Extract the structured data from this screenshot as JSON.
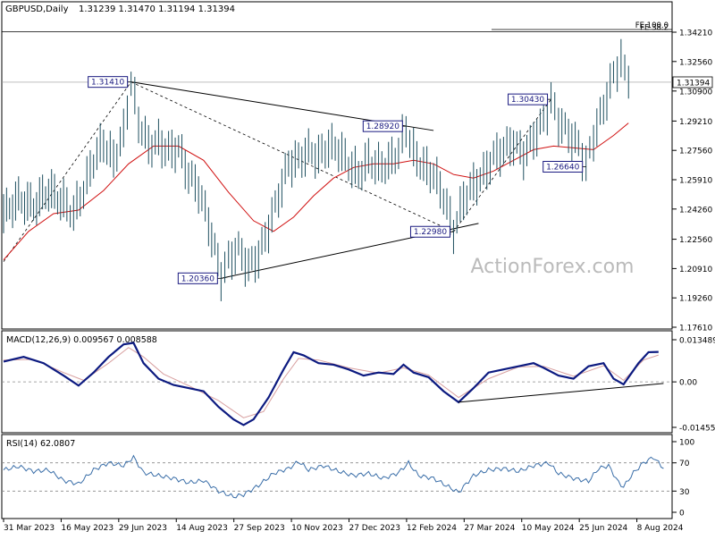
{
  "header": {
    "symbol": "GBPUSD,Daily",
    "ohlc": "1.31239 1.31470 1.31194 1.31394"
  },
  "watermark": "ActionForex.com",
  "colors": {
    "price_line": "#1e4f5f",
    "ma": "#d01010",
    "macd": "#0c1a80",
    "signal": "#d8a0a0",
    "rsi": "#3a6ea8",
    "label_border": "#1a1a80",
    "label_text": "#1a1a80",
    "trendline": "#000000"
  },
  "chart_data": [
    {
      "type": "line",
      "panel": "price",
      "y_ticks": [
        "1.34210",
        "1.32560",
        "1.30900",
        "1.29210",
        "1.27560",
        "1.25910",
        "1.24260",
        "1.22560",
        "1.20910",
        "1.19260",
        "1.17610"
      ],
      "ylim": [
        1.1761,
        1.3511
      ],
      "current_price": "1.31394",
      "fe_lines": [
        {
          "label": "FE 100.0",
          "value": 1.3436
        },
        {
          "label": "FE 38.2",
          "value": 1.3423
        }
      ],
      "x_tick_labels": [
        "31 Mar 2023",
        "16 May 2023",
        "29 Jun 2023",
        "14 Aug 2023",
        "27 Sep 2023",
        "10 Nov 2023",
        "27 Dec 2023",
        "12 Feb 2024",
        "27 Mar 2024",
        "10 May 2024",
        "25 Jun 2024",
        "8 Aug 2024"
      ],
      "annotations": [
        {
          "label": "1.31410",
          "value": 1.3141,
          "x_index": 25.5
        },
        {
          "label": "1.28920",
          "value": 1.2892,
          "x_index": 80.5
        },
        {
          "label": "1.30430",
          "value": 1.3043,
          "x_index": 109.5
        },
        {
          "label": "1.26640",
          "value": 1.2664,
          "x_index": 116.5
        },
        {
          "label": "1.22980",
          "value": 1.2298,
          "x_index": 90.0
        },
        {
          "label": "1.20360",
          "value": 1.2036,
          "x_index": 43.5
        }
      ],
      "price_series": [
        {
          "x": 0,
          "y": 1.24
        },
        {
          "x": 3,
          "y": 1.248
        },
        {
          "x": 6,
          "y": 1.244
        },
        {
          "x": 9,
          "y": 1.253
        },
        {
          "x": 12,
          "y": 1.246
        },
        {
          "x": 14,
          "y": 1.24
        },
        {
          "x": 16,
          "y": 1.253
        },
        {
          "x": 18,
          "y": 1.27
        },
        {
          "x": 20,
          "y": 1.28
        },
        {
          "x": 22,
          "y": 1.27
        },
        {
          "x": 24,
          "y": 1.285
        },
        {
          "x": 25.5,
          "y": 1.314
        },
        {
          "x": 27,
          "y": 1.292
        },
        {
          "x": 29,
          "y": 1.278
        },
        {
          "x": 31,
          "y": 1.28
        },
        {
          "x": 33,
          "y": 1.275
        },
        {
          "x": 35,
          "y": 1.277
        },
        {
          "x": 37,
          "y": 1.262
        },
        {
          "x": 39,
          "y": 1.254
        },
        {
          "x": 41,
          "y": 1.235
        },
        {
          "x": 43.5,
          "y": 1.205
        },
        {
          "x": 45,
          "y": 1.214
        },
        {
          "x": 47,
          "y": 1.22
        },
        {
          "x": 49,
          "y": 1.21
        },
        {
          "x": 51,
          "y": 1.216
        },
        {
          "x": 53,
          "y": 1.232
        },
        {
          "x": 55,
          "y": 1.25
        },
        {
          "x": 57,
          "y": 1.268
        },
        {
          "x": 59,
          "y": 1.27
        },
        {
          "x": 61,
          "y": 1.275
        },
        {
          "x": 63,
          "y": 1.272
        },
        {
          "x": 65,
          "y": 1.278
        },
        {
          "x": 67,
          "y": 1.276
        },
        {
          "x": 69,
          "y": 1.268
        },
        {
          "x": 71,
          "y": 1.262
        },
        {
          "x": 73,
          "y": 1.27
        },
        {
          "x": 75,
          "y": 1.266
        },
        {
          "x": 77,
          "y": 1.268
        },
        {
          "x": 79,
          "y": 1.275
        },
        {
          "x": 80.5,
          "y": 1.288
        },
        {
          "x": 82,
          "y": 1.274
        },
        {
          "x": 84,
          "y": 1.266
        },
        {
          "x": 86,
          "y": 1.262
        },
        {
          "x": 88,
          "y": 1.25
        },
        {
          "x": 90,
          "y": 1.23
        },
        {
          "x": 92,
          "y": 1.248
        },
        {
          "x": 94,
          "y": 1.256
        },
        {
          "x": 96,
          "y": 1.262
        },
        {
          "x": 98,
          "y": 1.272
        },
        {
          "x": 100,
          "y": 1.276
        },
        {
          "x": 102,
          "y": 1.28
        },
        {
          "x": 104,
          "y": 1.273
        },
        {
          "x": 106,
          "y": 1.282
        },
        {
          "x": 108,
          "y": 1.293
        },
        {
          "x": 109.5,
          "y": 1.304
        },
        {
          "x": 111,
          "y": 1.292
        },
        {
          "x": 113,
          "y": 1.285
        },
        {
          "x": 115,
          "y": 1.278
        },
        {
          "x": 116.5,
          "y": 1.267
        },
        {
          "x": 118,
          "y": 1.283
        },
        {
          "x": 120,
          "y": 1.3
        },
        {
          "x": 122,
          "y": 1.318
        },
        {
          "x": 123.5,
          "y": 1.326
        },
        {
          "x": 125,
          "y": 1.314
        }
      ],
      "ma_series": [
        {
          "x": 0,
          "y": 1.214
        },
        {
          "x": 5,
          "y": 1.23
        },
        {
          "x": 10,
          "y": 1.24
        },
        {
          "x": 15,
          "y": 1.242
        },
        {
          "x": 20,
          "y": 1.253
        },
        {
          "x": 25,
          "y": 1.268
        },
        {
          "x": 30,
          "y": 1.278
        },
        {
          "x": 35,
          "y": 1.278
        },
        {
          "x": 40,
          "y": 1.27
        },
        {
          "x": 45,
          "y": 1.252
        },
        {
          "x": 50,
          "y": 1.236
        },
        {
          "x": 54,
          "y": 1.23
        },
        {
          "x": 58,
          "y": 1.238
        },
        {
          "x": 62,
          "y": 1.25
        },
        {
          "x": 66,
          "y": 1.26
        },
        {
          "x": 70,
          "y": 1.266
        },
        {
          "x": 74,
          "y": 1.268
        },
        {
          "x": 78,
          "y": 1.268
        },
        {
          "x": 82,
          "y": 1.27
        },
        {
          "x": 86,
          "y": 1.268
        },
        {
          "x": 90,
          "y": 1.262
        },
        {
          "x": 94,
          "y": 1.26
        },
        {
          "x": 98,
          "y": 1.264
        },
        {
          "x": 102,
          "y": 1.27
        },
        {
          "x": 106,
          "y": 1.276
        },
        {
          "x": 110,
          "y": 1.278
        },
        {
          "x": 114,
          "y": 1.277
        },
        {
          "x": 118,
          "y": 1.276
        },
        {
          "x": 122,
          "y": 1.284
        },
        {
          "x": 125,
          "y": 1.291
        }
      ],
      "trendlines": [
        {
          "style": "solid",
          "from": {
            "x": 25.5,
            "y": 1.3141
          },
          "to": {
            "x": 86,
            "y": 1.2868
          }
        },
        {
          "style": "solid",
          "from": {
            "x": 43.5,
            "y": 1.2036
          },
          "to": {
            "x": 95,
            "y": 1.2345
          }
        },
        {
          "style": "dashed",
          "from": {
            "x": 0,
            "y": 1.213
          },
          "to": {
            "x": 25.5,
            "y": 1.3141
          }
        },
        {
          "style": "dashed",
          "from": {
            "x": 25.5,
            "y": 1.3141
          },
          "to": {
            "x": 90,
            "y": 1.2298
          }
        },
        {
          "style": "dashed",
          "from": {
            "x": 90,
            "y": 1.2298
          },
          "to": {
            "x": 109.5,
            "y": 1.3043
          }
        }
      ]
    },
    {
      "type": "line",
      "panel": "macd",
      "title": "MACD(12,26,9) 0.009567 0.008588",
      "y_ticks": [
        "0.013489",
        "0.00",
        "-0.014554"
      ],
      "ylim": [
        -0.0155,
        0.016
      ],
      "zero_label": "0.00",
      "macd_series": [
        {
          "x": 0,
          "y": 0.0065
        },
        {
          "x": 4,
          "y": 0.008
        },
        {
          "x": 8,
          "y": 0.006
        },
        {
          "x": 12,
          "y": 0.002
        },
        {
          "x": 15,
          "y": -0.0012
        },
        {
          "x": 18,
          "y": 0.003
        },
        {
          "x": 21,
          "y": 0.008
        },
        {
          "x": 24,
          "y": 0.012
        },
        {
          "x": 26,
          "y": 0.0125
        },
        {
          "x": 28,
          "y": 0.006
        },
        {
          "x": 31,
          "y": 0.001
        },
        {
          "x": 34,
          "y": -0.001
        },
        {
          "x": 37,
          "y": -0.002
        },
        {
          "x": 40,
          "y": -0.003
        },
        {
          "x": 43,
          "y": -0.008
        },
        {
          "x": 46,
          "y": -0.012
        },
        {
          "x": 48,
          "y": -0.0138
        },
        {
          "x": 50,
          "y": -0.012
        },
        {
          "x": 53,
          "y": -0.005
        },
        {
          "x": 56,
          "y": 0.004
        },
        {
          "x": 58,
          "y": 0.0095
        },
        {
          "x": 60,
          "y": 0.0085
        },
        {
          "x": 63,
          "y": 0.006
        },
        {
          "x": 66,
          "y": 0.0055
        },
        {
          "x": 69,
          "y": 0.004
        },
        {
          "x": 72,
          "y": 0.002
        },
        {
          "x": 75,
          "y": 0.003
        },
        {
          "x": 78,
          "y": 0.0025
        },
        {
          "x": 80,
          "y": 0.0055
        },
        {
          "x": 82,
          "y": 0.003
        },
        {
          "x": 85,
          "y": 0.0015
        },
        {
          "x": 88,
          "y": -0.003
        },
        {
          "x": 91,
          "y": -0.0065
        },
        {
          "x": 94,
          "y": -0.002
        },
        {
          "x": 97,
          "y": 0.003
        },
        {
          "x": 100,
          "y": 0.004
        },
        {
          "x": 103,
          "y": 0.005
        },
        {
          "x": 106,
          "y": 0.006
        },
        {
          "x": 108,
          "y": 0.0045
        },
        {
          "x": 111,
          "y": 0.002
        },
        {
          "x": 114,
          "y": 0.001
        },
        {
          "x": 117,
          "y": 0.005
        },
        {
          "x": 120,
          "y": 0.006
        },
        {
          "x": 122,
          "y": 0.001
        },
        {
          "x": 124,
          "y": -0.0008
        },
        {
          "x": 127,
          "y": 0.006
        },
        {
          "x": 129,
          "y": 0.0095
        },
        {
          "x": 131,
          "y": 0.0096
        }
      ],
      "signal_series": [
        {
          "x": 0,
          "y": 0.007
        },
        {
          "x": 6,
          "y": 0.0072
        },
        {
          "x": 12,
          "y": 0.003
        },
        {
          "x": 16,
          "y": 0.0005
        },
        {
          "x": 21,
          "y": 0.006
        },
        {
          "x": 25,
          "y": 0.011
        },
        {
          "x": 28,
          "y": 0.008
        },
        {
          "x": 32,
          "y": 0.0025
        },
        {
          "x": 37,
          "y": -0.0012
        },
        {
          "x": 43,
          "y": -0.006
        },
        {
          "x": 48,
          "y": -0.0115
        },
        {
          "x": 52,
          "y": -0.0095
        },
        {
          "x": 56,
          "y": 0.001
        },
        {
          "x": 59,
          "y": 0.0075
        },
        {
          "x": 63,
          "y": 0.007
        },
        {
          "x": 69,
          "y": 0.0045
        },
        {
          "x": 75,
          "y": 0.0028
        },
        {
          "x": 80,
          "y": 0.0045
        },
        {
          "x": 85,
          "y": 0.0022
        },
        {
          "x": 91,
          "y": -0.005
        },
        {
          "x": 97,
          "y": 0.001
        },
        {
          "x": 103,
          "y": 0.0048
        },
        {
          "x": 108,
          "y": 0.005
        },
        {
          "x": 114,
          "y": 0.0018
        },
        {
          "x": 120,
          "y": 0.0052
        },
        {
          "x": 124,
          "y": 0.0005
        },
        {
          "x": 128,
          "y": 0.007
        },
        {
          "x": 131,
          "y": 0.0086
        }
      ],
      "trendline": {
        "from": {
          "x": 91,
          "y": -0.0065
        },
        "to": {
          "x": 132,
          "y": -0.0005
        }
      }
    },
    {
      "type": "line",
      "panel": "rsi",
      "title": "RSI(14) 62.0807",
      "y_ticks": [
        "100",
        "70",
        "30",
        "0"
      ],
      "ylim": [
        0,
        100
      ],
      "rsi_series": [
        {
          "x": 0,
          "y": 60
        },
        {
          "x": 3,
          "y": 65
        },
        {
          "x": 6,
          "y": 58
        },
        {
          "x": 9,
          "y": 60
        },
        {
          "x": 12,
          "y": 45
        },
        {
          "x": 15,
          "y": 40
        },
        {
          "x": 18,
          "y": 60
        },
        {
          "x": 21,
          "y": 70
        },
        {
          "x": 24,
          "y": 66
        },
        {
          "x": 26,
          "y": 78
        },
        {
          "x": 28,
          "y": 56
        },
        {
          "x": 31,
          "y": 52
        },
        {
          "x": 34,
          "y": 48
        },
        {
          "x": 37,
          "y": 42
        },
        {
          "x": 40,
          "y": 45
        },
        {
          "x": 43,
          "y": 30
        },
        {
          "x": 46,
          "y": 22
        },
        {
          "x": 48,
          "y": 25
        },
        {
          "x": 51,
          "y": 38
        },
        {
          "x": 54,
          "y": 55
        },
        {
          "x": 57,
          "y": 62
        },
        {
          "x": 59,
          "y": 72
        },
        {
          "x": 61,
          "y": 60
        },
        {
          "x": 64,
          "y": 66
        },
        {
          "x": 67,
          "y": 58
        },
        {
          "x": 70,
          "y": 52
        },
        {
          "x": 73,
          "y": 55
        },
        {
          "x": 76,
          "y": 48
        },
        {
          "x": 79,
          "y": 56
        },
        {
          "x": 81,
          "y": 70
        },
        {
          "x": 83,
          "y": 52
        },
        {
          "x": 86,
          "y": 48
        },
        {
          "x": 89,
          "y": 36
        },
        {
          "x": 91,
          "y": 28
        },
        {
          "x": 94,
          "y": 52
        },
        {
          "x": 97,
          "y": 60
        },
        {
          "x": 100,
          "y": 62
        },
        {
          "x": 103,
          "y": 58
        },
        {
          "x": 106,
          "y": 66
        },
        {
          "x": 109,
          "y": 70
        },
        {
          "x": 111,
          "y": 55
        },
        {
          "x": 114,
          "y": 48
        },
        {
          "x": 117,
          "y": 44
        },
        {
          "x": 119,
          "y": 62
        },
        {
          "x": 121,
          "y": 66
        },
        {
          "x": 123,
          "y": 42
        },
        {
          "x": 124,
          "y": 36
        },
        {
          "x": 126,
          "y": 56
        },
        {
          "x": 128,
          "y": 70
        },
        {
          "x": 130,
          "y": 78
        },
        {
          "x": 132,
          "y": 62
        }
      ]
    }
  ]
}
